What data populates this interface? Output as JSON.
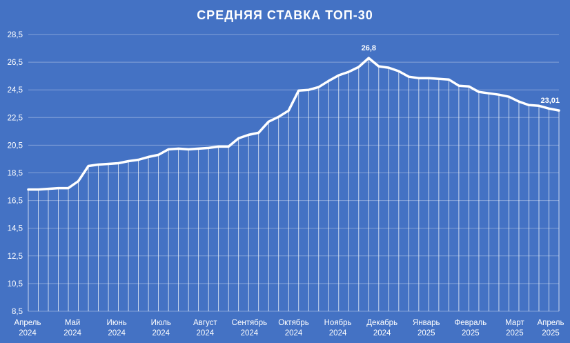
{
  "chart_data": {
    "type": "line",
    "title": "СРЕДНЯЯ СТАВКА ТОП-30",
    "xlabel": "",
    "ylabel": "",
    "ylim": [
      8.5,
      28.5
    ],
    "yticks": [
      "8,5",
      "10,5",
      "12,5",
      "14,5",
      "16,5",
      "18,5",
      "20,5",
      "22,5",
      "24,5",
      "26,5",
      "28,5"
    ],
    "x_tick_labels": [
      {
        "month": "Апрель",
        "year": "2024"
      },
      {
        "month": "Май",
        "year": "2024"
      },
      {
        "month": "Июнь",
        "year": "2024"
      },
      {
        "month": "Июль",
        "year": "2024"
      },
      {
        "month": "Август",
        "year": "2024"
      },
      {
        "month": "Сентябрь",
        "year": "2024"
      },
      {
        "month": "Октябрь",
        "year": "2024"
      },
      {
        "month": "Ноябрь",
        "year": "2024"
      },
      {
        "month": "Декабрь",
        "year": "2024"
      },
      {
        "month": "Январь",
        "year": "2025"
      },
      {
        "month": "Февраль",
        "year": "2025"
      },
      {
        "month": "Март",
        "year": "2025"
      },
      {
        "month": "Апрель",
        "year": "2025"
      }
    ],
    "grid": true,
    "drop_lines": true,
    "line_color": "#ffffff",
    "background_color": "#4472c4",
    "series": [
      {
        "values": [
          17.3,
          17.3,
          17.35,
          17.4,
          17.4,
          17.9,
          19.0,
          19.1,
          19.15,
          19.2,
          19.35,
          19.45,
          19.65,
          19.8,
          20.2,
          20.25,
          20.2,
          20.25,
          20.3,
          20.4,
          20.4,
          21.0,
          21.25,
          21.4,
          22.2,
          22.55,
          23.0,
          24.45,
          24.5,
          24.7,
          25.15,
          25.55,
          25.8,
          26.15,
          26.8,
          26.2,
          26.1,
          25.85,
          25.45,
          25.35,
          25.35,
          25.3,
          25.25,
          24.8,
          24.75,
          24.35,
          24.25,
          24.15,
          24.0,
          23.65,
          23.4,
          23.35,
          23.15,
          23.01
        ]
      }
    ],
    "data_labels": [
      {
        "index": 34,
        "text": "26,8"
      },
      {
        "index": 53,
        "text": "23,01"
      }
    ]
  }
}
